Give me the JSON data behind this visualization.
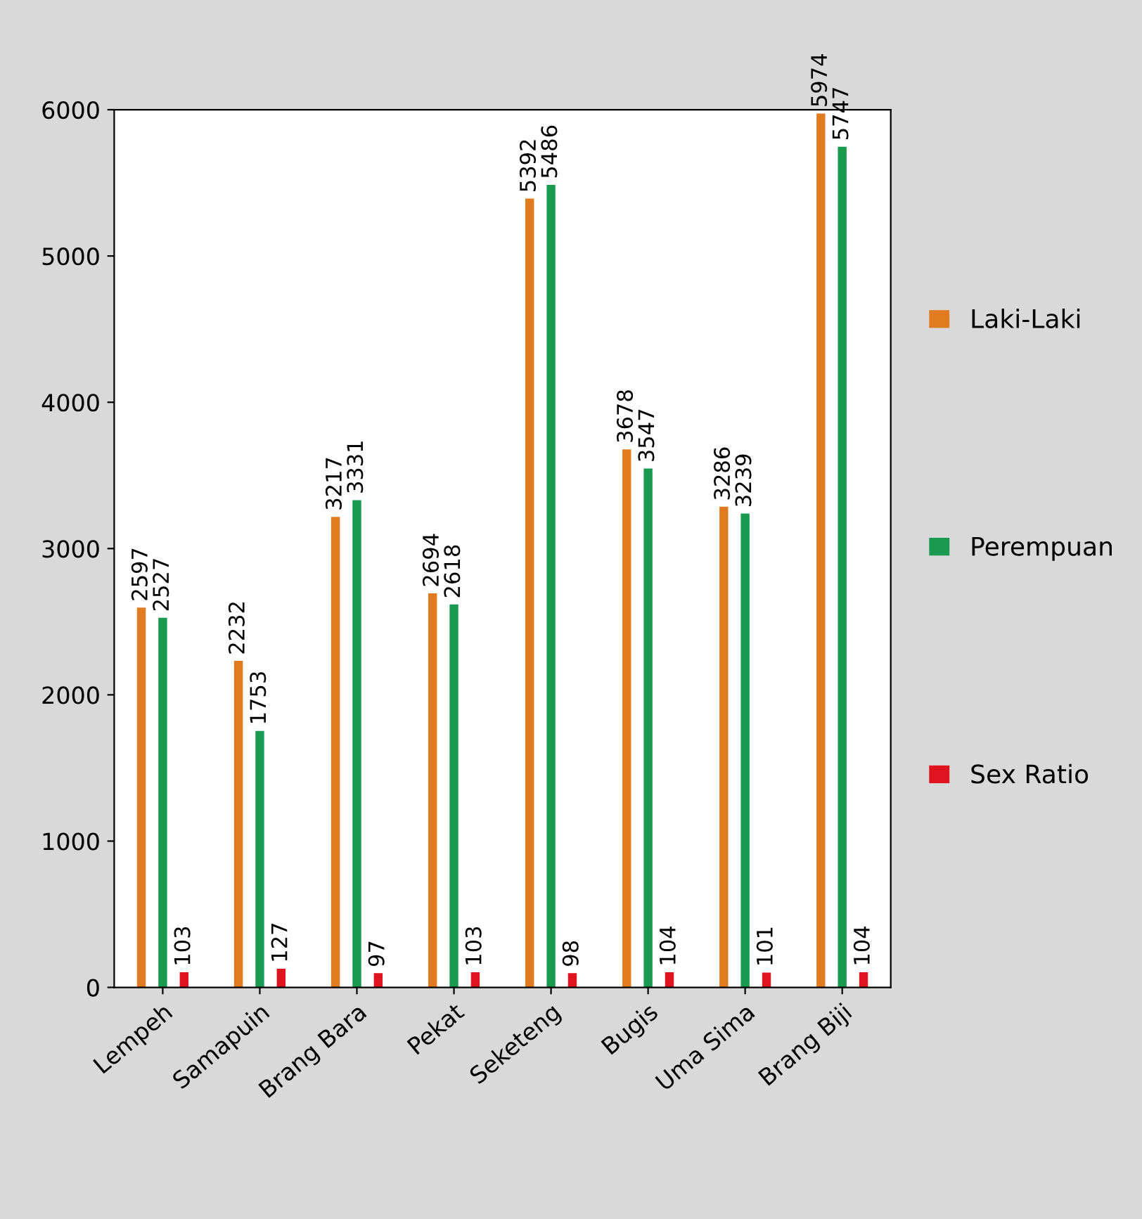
{
  "chart_data": {
    "type": "bar",
    "categories": [
      "Lempeh",
      "Samapuin",
      "Brang Bara",
      "Pekat",
      "Seketeng",
      "Bugis",
      "Uma Sima",
      "Brang Biji"
    ],
    "series": [
      {
        "name": "Laki-Laki",
        "color": "#e07b20",
        "values": [
          2597,
          2232,
          3217,
          2694,
          5392,
          3678,
          3286,
          5974
        ]
      },
      {
        "name": "Perempuan",
        "color": "#1a9a50",
        "values": [
          2527,
          1753,
          3331,
          2618,
          5486,
          3547,
          3239,
          5747
        ]
      },
      {
        "name": "Sex Ratio",
        "color": "#e0141e",
        "values": [
          103,
          127,
          97,
          103,
          98,
          104,
          101,
          104
        ]
      }
    ],
    "ylim": [
      0,
      6000
    ],
    "yticks": [
      0,
      1000,
      2000,
      3000,
      4000,
      5000,
      6000
    ],
    "data_labels": true,
    "legend": "right",
    "grid": false
  }
}
